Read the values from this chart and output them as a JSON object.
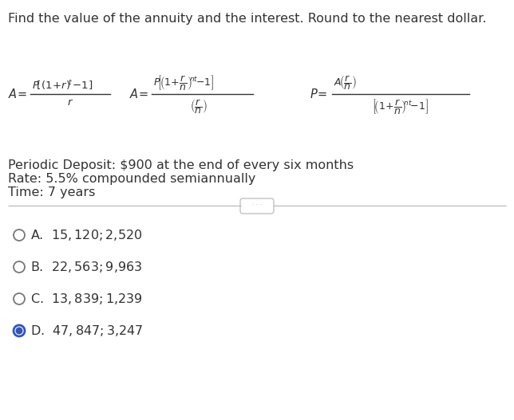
{
  "title": "Find the value of the annuity and the interest. Round to the nearest dollar.",
  "deposit_line": "Periodic Deposit: $900 at the end of every six months",
  "rate_line": "Rate: 5.5% compounded semiannually",
  "time_line": "Time: 7 years",
  "options": [
    {
      "letter": "A.",
      "text": "$15,120; $2,520",
      "selected": false
    },
    {
      "letter": "B.",
      "text": "$22,563; $9,963",
      "selected": false
    },
    {
      "letter": "C.",
      "text": "$13,839; $1,239",
      "selected": false
    },
    {
      "letter": "D.",
      "text": "$47,847; $3,247",
      "selected": true
    }
  ],
  "bg_color": "#ffffff",
  "text_color": "#333333",
  "radio_selected_fill": "#3355bb",
  "formula_color": "#333333",
  "sep_color": "#bbbbbb",
  "title_fontsize": 11.5,
  "body_fontsize": 11.5,
  "formula_fontsize": 9.5
}
